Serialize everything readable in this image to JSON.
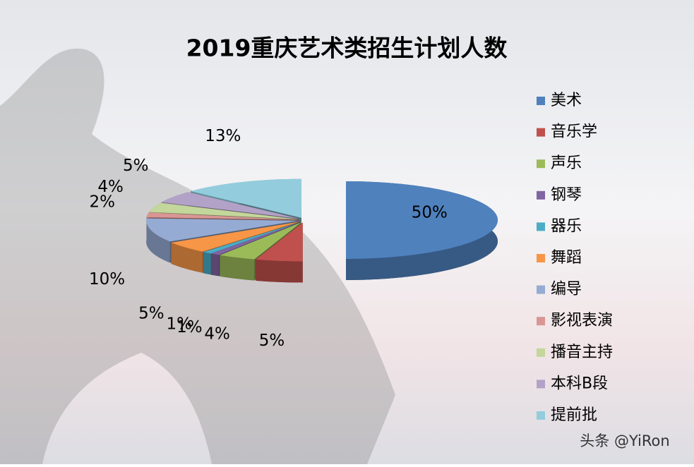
{
  "chart_data": {
    "type": "pie3d",
    "title": "2019重庆艺术类招生计划人数",
    "categories": [
      "美术",
      "音乐学",
      "声乐",
      "钢琴",
      "器乐",
      "舞蹈",
      "编导",
      "影视表演",
      "播音主持",
      "本科B段",
      "提前批"
    ],
    "values": [
      50,
      5,
      4,
      1,
      1,
      5,
      10,
      2,
      4,
      5,
      13
    ],
    "value_labels": [
      "50%",
      "5%",
      "4%",
      "1%",
      "1%",
      "5%",
      "10%",
      "2%",
      "4%",
      "5%",
      "13%"
    ],
    "colors": [
      "#4F81BD",
      "#C0504D",
      "#9BBB59",
      "#8064A2",
      "#4BACC6",
      "#F79646",
      "#95ABD3",
      "#D99694",
      "#C3D69B",
      "#B3A2C7",
      "#93CDDD"
    ],
    "legend": "right"
  },
  "watermark": "头条 @YiRon"
}
